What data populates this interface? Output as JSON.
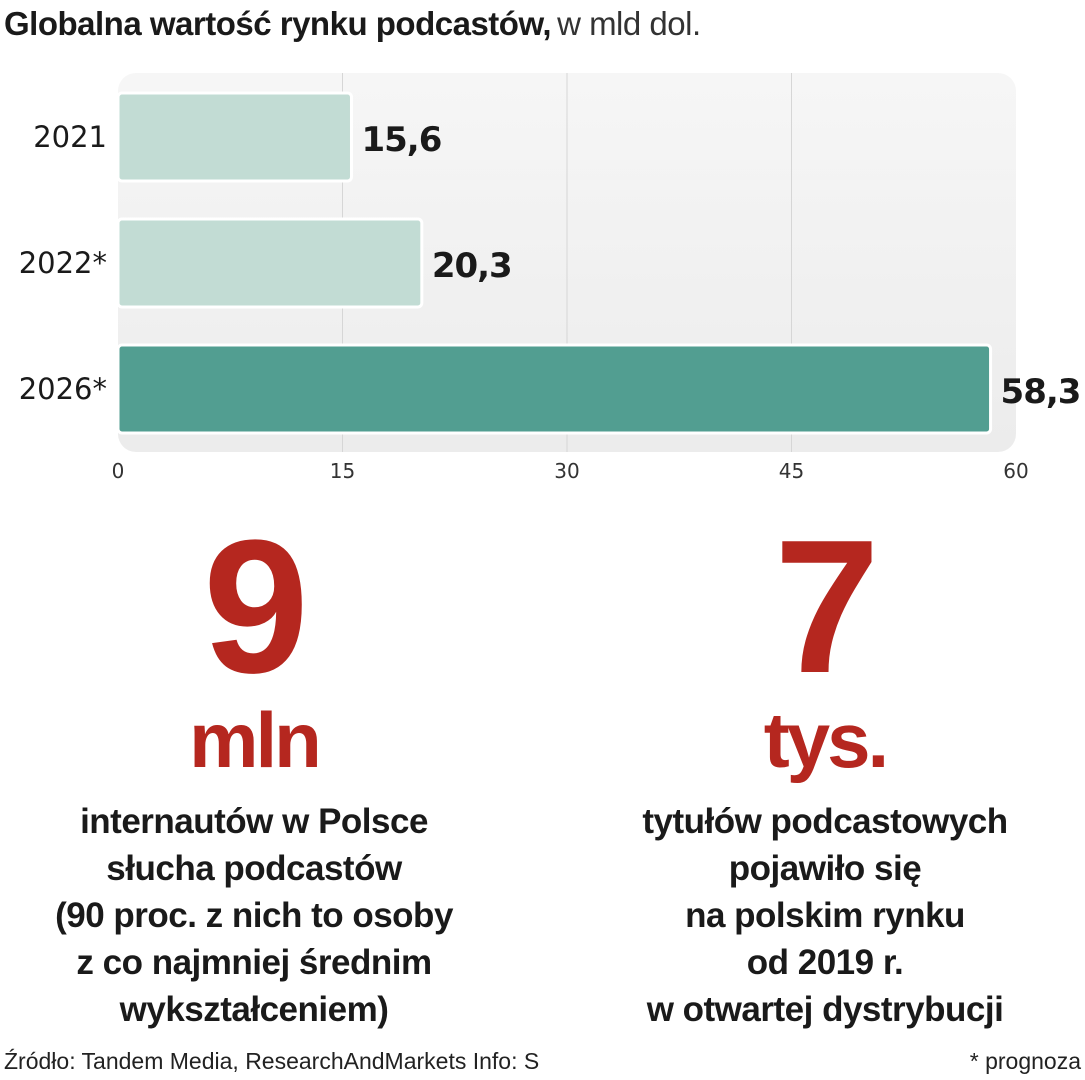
{
  "header": {
    "title_bold": "Globalna wartość rynku podcastów,",
    "title_unit": "w mld dol."
  },
  "chart_data": {
    "type": "bar",
    "orientation": "horizontal",
    "categories": [
      "2021",
      "2022*",
      "2026*"
    ],
    "values": [
      15.6,
      20.3,
      58.3
    ],
    "value_labels": [
      "15,6",
      "20,3",
      "58,3"
    ],
    "xlim": [
      0,
      60
    ],
    "xticks": [
      0,
      15,
      30,
      45,
      60
    ],
    "grid": true,
    "colors": {
      "actual": "#c2dcd4",
      "forecast_highlight": "#529e91",
      "plot_bg": "#ececec"
    },
    "bar_colors": [
      "#c2dcd4",
      "#c2dcd4",
      "#529e91"
    ]
  },
  "stats": [
    {
      "number": "9",
      "unit": "mln",
      "description": "internautów w Polsce\nsłucha podcastów\n(90 proc. z nich to osoby\nz co najmniej średnim\nwykształceniem)"
    },
    {
      "number": "7",
      "unit": "tys.",
      "description": "tytułów podcastowych\npojawiło się\nna polskim rynku\nod 2019 r.\nw otwartej dystrybucji"
    }
  ],
  "footer": {
    "source": "Źródło: Tandem Media, ResearchAndMarkets    Info: S",
    "note": "* prognoza"
  },
  "colors": {
    "accent_red": "#b5271f"
  }
}
